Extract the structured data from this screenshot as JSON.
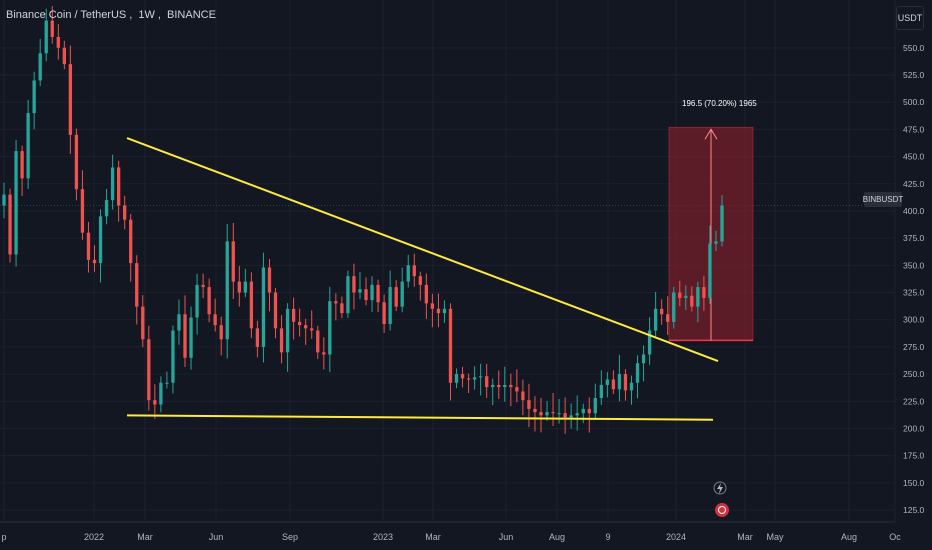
{
  "header": {
    "symbol": "Binance Coin / TetherUS",
    "interval": "1W",
    "exchange": "BINANCE"
  },
  "currency_label": "USDT",
  "symbol_badge": "BINBUSDT",
  "colors": {
    "background": "#131722",
    "up": "#26a69a",
    "down": "#ef5350",
    "trendline": "#ffeb3b",
    "projection_fill": "#7a1f2a",
    "projection_border": "#f23645"
  },
  "projection_label": "196.5 (70.20%) 1965",
  "chart_data": {
    "type": "candlestick",
    "y_unit": "USDT",
    "ylim": [
      105,
      575
    ],
    "y_ticks": [
      "125.0",
      "150.0",
      "175.0",
      "200.0",
      "225.0",
      "250.0",
      "275.0",
      "300.0",
      "325.0",
      "350.0",
      "375.0",
      "400.0",
      "425.0",
      "450.0",
      "475.0",
      "500.0",
      "525.0",
      "550.0"
    ],
    "x_ticks": [
      "p",
      "2022",
      "Mar",
      "Jun",
      "Sep",
      "2023",
      "Mar",
      "Jun",
      "Aug",
      "9",
      "2024",
      "Mar",
      "May",
      "Aug",
      "Oc"
    ],
    "current_price": 405,
    "descending_trendline": {
      "from": {
        "date": "2022-02",
        "price": 467
      },
      "to": {
        "date": "2024-03",
        "price": 262
      }
    },
    "support_trendline": {
      "from": {
        "date": "2022-02",
        "price": 212
      },
      "to": {
        "date": "2024-03",
        "price": 208
      }
    },
    "projection": {
      "bottom": 281,
      "top": 477,
      "label": "196.5 (70.20%) 1965"
    },
    "closes": [
      415,
      360,
      455,
      430,
      490,
      520,
      545,
      575,
      560,
      550,
      535,
      470,
      420,
      380,
      355,
      352,
      395,
      410,
      440,
      405,
      392,
      352,
      312,
      282,
      226,
      222,
      242,
      242,
      290,
      305,
      265,
      302,
      332,
      330,
      305,
      295,
      282,
      372,
      335,
      325,
      335,
      292,
      275,
      348,
      325,
      292,
      270,
      310,
      298,
      295,
      292,
      290,
      270,
      268,
      317,
      315,
      306,
      340,
      325,
      328,
      318,
      332,
      316,
      296,
      330,
      312,
      335,
      350,
      340,
      332,
      315,
      310,
      306,
      310,
      242,
      250,
      246,
      245,
      247,
      248,
      238,
      240,
      238,
      240,
      238,
      234,
      226,
      218,
      215,
      212,
      215,
      214,
      214,
      210,
      212,
      214,
      218,
      214,
      228,
      240,
      245,
      236,
      250,
      235,
      242,
      260,
      268,
      290,
      310,
      305,
      298,
      325,
      320,
      322,
      312,
      330,
      320,
      370,
      372,
      405
    ]
  }
}
